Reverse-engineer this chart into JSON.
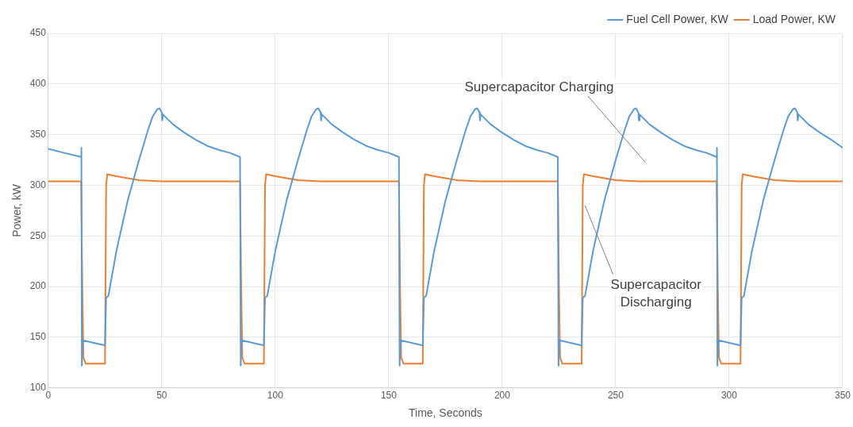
{
  "chart_data": {
    "type": "line",
    "xlabel": "Time, Seconds",
    "ylabel": "Power, kW",
    "xlim": [
      0,
      350
    ],
    "xticks": [
      0,
      50,
      100,
      150,
      200,
      250,
      300,
      350
    ],
    "ylim": [
      100,
      450
    ],
    "yticks": [
      100,
      150,
      200,
      250,
      300,
      350,
      400,
      450
    ],
    "grid": true,
    "legend": "top right",
    "marker": "none",
    "line_style": "solid",
    "annotations": [
      "Supercapacitor Charging",
      {
        "text": "Supercapacitor\nDischarging",
        "x": 236.5,
        "y": 280
      }
    ],
    "series": [
      {
        "name": "Fuel Cell Power, KW",
        "color": "#5b9bd5",
        "x": [
          0,
          7,
          14.5,
          14.6,
          14.8,
          15.2,
          25,
          25.5,
          26.5,
          30,
          35,
          40,
          44,
          46,
          48,
          49,
          50,
          50.2,
          50.5,
          55,
          60,
          65,
          70,
          75,
          80,
          84.5,
          84.8,
          85.2,
          95,
          95.5,
          96.5,
          100,
          105,
          110,
          114,
          116,
          118,
          119,
          120,
          120.2,
          120.5,
          125,
          130,
          135,
          140,
          145,
          150,
          154.5,
          154.8,
          155.2,
          165,
          165.5,
          166.5,
          170,
          175,
          180,
          184,
          186,
          188,
          189,
          190,
          190.2,
          190.5,
          195,
          200,
          205,
          210,
          215,
          220,
          224.5,
          224.8,
          225.2,
          235,
          235.5,
          236.5,
          240,
          245,
          250,
          254,
          256,
          258,
          259,
          260,
          260.2,
          260.5,
          265,
          270,
          275,
          280,
          285,
          290,
          294.5,
          294.6,
          294.8,
          295.2,
          305,
          305.5,
          306.5,
          310,
          315,
          320,
          324,
          326,
          328,
          329,
          330,
          330.2,
          330.5,
          335,
          340,
          345,
          350
        ],
        "values": [
          336,
          332,
          328,
          337,
          122,
          147,
          142,
          189,
          191,
          235,
          285,
          325,
          355,
          368,
          375,
          376,
          372,
          364,
          370,
          360,
          352,
          345,
          339,
          335,
          332,
          328,
          122,
          147,
          142,
          189,
          191,
          235,
          285,
          325,
          355,
          368,
          375,
          376,
          372,
          364,
          370,
          360,
          352,
          345,
          339,
          335,
          332,
          328,
          122,
          147,
          142,
          189,
          191,
          235,
          285,
          325,
          355,
          368,
          375,
          376,
          372,
          364,
          370,
          360,
          352,
          345,
          339,
          335,
          332,
          328,
          122,
          147,
          142,
          189,
          191,
          235,
          285,
          325,
          355,
          368,
          375,
          376,
          372,
          364,
          370,
          360,
          352,
          345,
          339,
          335,
          332,
          328,
          337,
          122,
          147,
          142,
          189,
          191,
          235,
          285,
          325,
          355,
          368,
          375,
          376,
          372,
          364,
          370,
          360,
          352,
          345,
          337
        ]
      },
      {
        "name": "Load Power, KW",
        "color": "#ed7d31",
        "x": [
          0,
          14.5,
          15,
          15.5,
          16.5,
          25,
          25.5,
          26,
          30,
          35,
          40,
          50,
          84.5,
          85,
          85.5,
          86.5,
          95,
          95.5,
          96,
          100,
          105,
          110,
          120,
          154.5,
          155,
          155.5,
          156.5,
          165,
          165.5,
          166,
          170,
          175,
          180,
          190,
          224.5,
          225,
          225.5,
          226.5,
          235,
          235.5,
          236,
          240,
          245,
          250,
          260,
          294.5,
          295,
          295.5,
          296.5,
          305,
          305.5,
          306,
          310,
          315,
          320,
          330,
          350
        ],
        "values": [
          304,
          304,
          200,
          130,
          124,
          124,
          300,
          311,
          309,
          307,
          305,
          304,
          304,
          200,
          130,
          124,
          124,
          300,
          311,
          309,
          307,
          305,
          304,
          304,
          200,
          130,
          124,
          124,
          300,
          311,
          309,
          307,
          305,
          304,
          304,
          200,
          130,
          124,
          124,
          300,
          311,
          309,
          307,
          305,
          304,
          304,
          200,
          130,
          124,
          124,
          300,
          311,
          309,
          307,
          305,
          304,
          304
        ]
      }
    ]
  }
}
